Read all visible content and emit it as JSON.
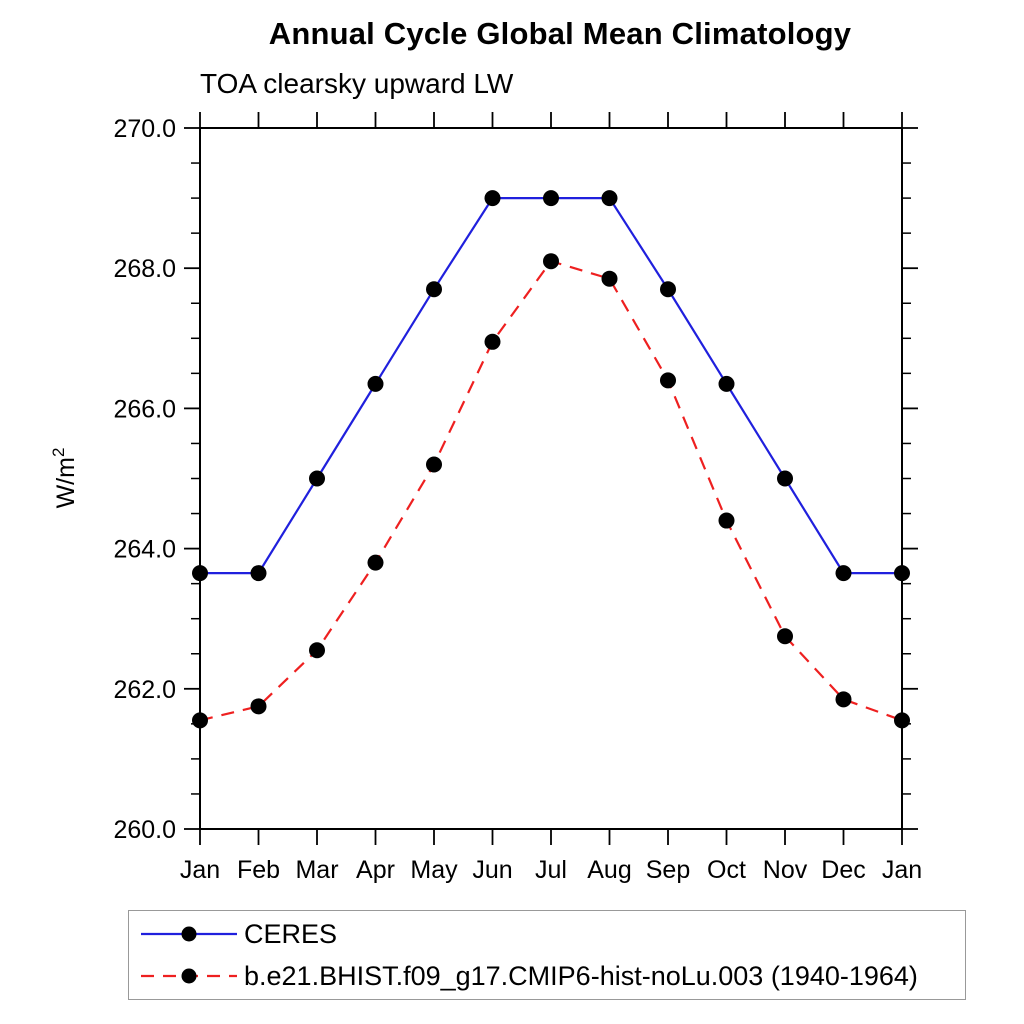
{
  "header": {
    "title": "Annual Cycle Global Mean Climatology",
    "subtitle": "TOA clearsky upward LW"
  },
  "chart_data": {
    "type": "line",
    "title": "Annual Cycle Global Mean Climatology",
    "subtitle": "TOA clearsky upward LW",
    "ylabel": "W/m²",
    "xlabel": "",
    "x_categories": [
      "Jan",
      "Feb",
      "Mar",
      "Apr",
      "May",
      "Jun",
      "Jul",
      "Aug",
      "Sep",
      "Oct",
      "Nov",
      "Dec",
      "Jan"
    ],
    "ylim": [
      260.0,
      270.0
    ],
    "ytick_major_values": [
      260.0,
      262.0,
      264.0,
      266.0,
      268.0,
      270.0
    ],
    "ytick_major_labels": [
      "260.0",
      "262.0",
      "264.0",
      "266.0",
      "268.0",
      "270.0"
    ],
    "ytick_minor_interval": 0.5,
    "grid": false,
    "frame_color": "#000000",
    "legend_position": "bottom-left-box",
    "series": [
      {
        "name": "CERES",
        "line_color": "#2020dd",
        "line_style": "solid",
        "marker": "filled-circle",
        "marker_color": "#000000",
        "values": [
          263.65,
          263.65,
          265.0,
          266.35,
          267.7,
          269.0,
          269.0,
          269.0,
          267.7,
          266.35,
          265.0,
          263.65,
          263.65
        ]
      },
      {
        "name": "b.e21.BHIST.f09_g17.CMIP6-hist-noLu.003 (1940-1964)",
        "line_color": "#ee2020",
        "line_style": "dashed",
        "marker": "filled-circle",
        "marker_color": "#000000",
        "values": [
          261.55,
          261.75,
          262.55,
          263.8,
          265.2,
          266.95,
          268.1,
          267.85,
          266.4,
          264.4,
          262.75,
          261.85,
          261.55
        ]
      }
    ]
  }
}
